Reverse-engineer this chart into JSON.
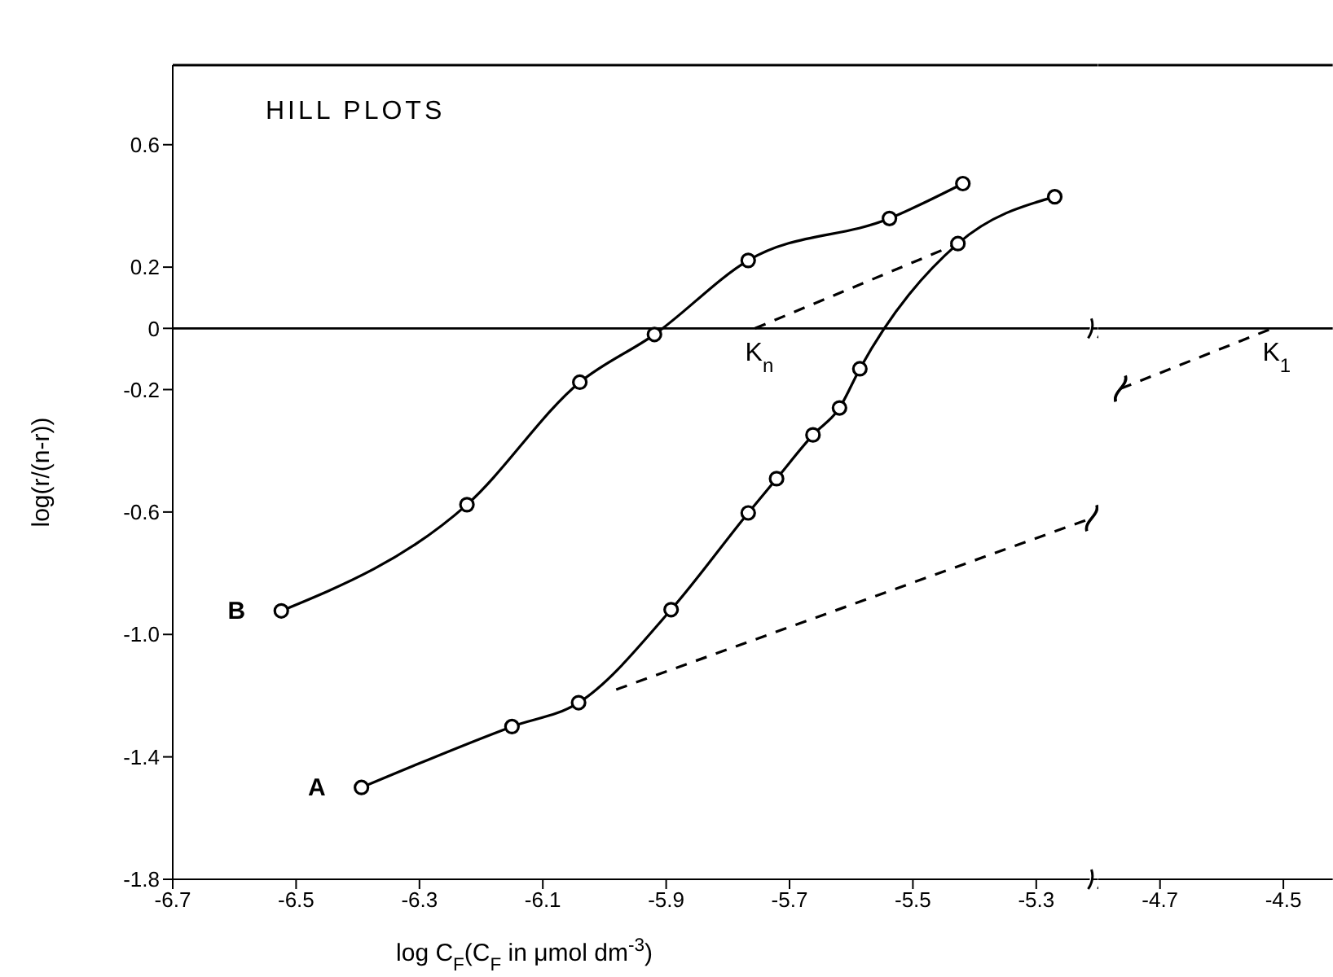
{
  "chart_data": [
    {
      "type": "line",
      "title": "HILL PLOTS",
      "xlabel": "log C$_{F}$(C$_{F}$ in μmol dm$^{-3}$)",
      "ylabel": "log(r/(n-r))",
      "xlim": [
        -6.7,
        -5.2
      ],
      "ylim": [
        -1.8,
        0.86
      ],
      "xticks": [
        -6.7,
        -6.5,
        -6.3,
        -6.1,
        -5.9,
        -5.7,
        -5.5,
        -5.3
      ],
      "yticks": [
        0.6,
        0.2,
        0,
        -0.2,
        -0.6,
        {
          "value": -1.0,
          "label": "-1.0"
        },
        -1.4,
        -1.8
      ],
      "series": [
        {
          "name": "B",
          "color": "#000000",
          "marker": "circle",
          "line_style": "solid",
          "x": [
            -6.524,
            -6.223,
            -6.04,
            -5.919,
            -5.767,
            -5.538,
            -5.419
          ],
          "values": [
            -0.923,
            -0.576,
            -0.176,
            -0.02,
            0.222,
            0.359,
            0.473
          ]
        },
        {
          "name": "A",
          "color": "#000000",
          "marker": "circle",
          "line_style": "solid",
          "x": [
            -6.394,
            -6.15,
            -6.042,
            -5.892,
            -5.767,
            -5.721,
            -5.662,
            -5.619,
            -5.586,
            -5.427,
            -5.27
          ],
          "values": [
            -1.5,
            -1.301,
            -1.223,
            -0.919,
            -0.603,
            -0.491,
            -0.348,
            -0.26,
            -0.132,
            0.277,
            0.43
          ]
        },
        {
          "color": "#000000",
          "line_style": "dashed",
          "x": [
            -5.756,
            -5.427
          ],
          "values": [
            0,
            0.277
          ]
        },
        {
          "color": "#000000",
          "line_style": "dashed",
          "x": [
            -5.981,
            -5.21
          ],
          "values": [
            -1.18,
            -0.62
          ]
        }
      ],
      "ref_lines": [
        {
          "axis": "y",
          "value": 0,
          "color": "#000000"
        }
      ],
      "annotations": [
        {
          "text": "K$_{n}$",
          "x": -5.756,
          "y": 0
        }
      ]
    },
    {
      "type": "line",
      "xlim": [
        -4.8,
        -4.42
      ],
      "ylim": [
        -1.8,
        0.86
      ],
      "tick_labels": "x",
      "xticks": [
        -4.7,
        -4.5
      ],
      "series": [
        {
          "color": "#000000",
          "line_style": "dashed",
          "x": [
            -4.764,
            -4.518
          ],
          "values": [
            -0.197,
            0
          ]
        }
      ],
      "ref_lines": [
        {
          "axis": "y",
          "value": 0,
          "color": "#000000"
        }
      ],
      "annotations": [
        {
          "text": "K$_{1}$",
          "x": -4.518,
          "y": 0
        }
      ]
    }
  ]
}
